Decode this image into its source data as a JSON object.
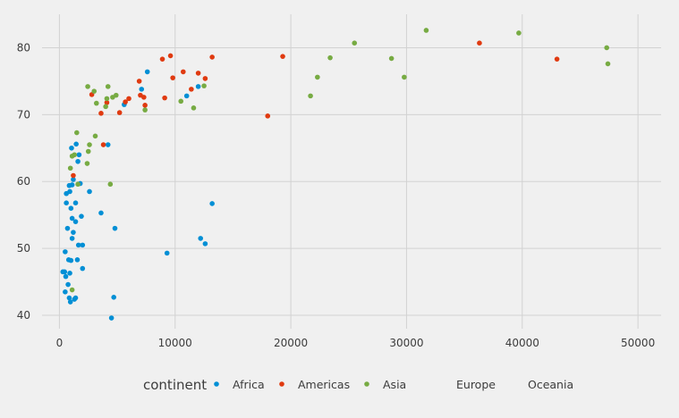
{
  "chart_data": {
    "type": "scatter",
    "title": "",
    "xlabel": "",
    "ylabel": "",
    "xlim": [
      -1500,
      52000
    ],
    "ylim": [
      38,
      85
    ],
    "xticks": [
      0,
      10000,
      20000,
      30000,
      40000,
      50000
    ],
    "yticks": [
      40,
      50,
      60,
      70,
      80
    ],
    "grid": true,
    "background": "#f0f0f0",
    "grid_color": "#d2d2d2",
    "legend": {
      "title": "continent",
      "position": "bottom",
      "entries": [
        {
          "label": "Africa",
          "color": "#008fd5"
        },
        {
          "label": "Americas",
          "color": "#e03a10"
        },
        {
          "label": "Asia",
          "color": "#77ab43"
        },
        {
          "label": "Europe",
          "color": ""
        },
        {
          "label": "Oceania",
          "color": ""
        }
      ]
    },
    "series": [
      {
        "name": "Africa",
        "color": "#008fd5",
        "points": [
          [
            300,
            46.5
          ],
          [
            450,
            46.5
          ],
          [
            500,
            49.5
          ],
          [
            500,
            43.5
          ],
          [
            550,
            45.8
          ],
          [
            600,
            56.8
          ],
          [
            600,
            58.2
          ],
          [
            700,
            53
          ],
          [
            750,
            44.6
          ],
          [
            800,
            48.3
          ],
          [
            850,
            42.6
          ],
          [
            850,
            59.4
          ],
          [
            900,
            46.3
          ],
          [
            900,
            58.5
          ],
          [
            950,
            42
          ],
          [
            1000,
            48.2
          ],
          [
            1000,
            56
          ],
          [
            1050,
            65
          ],
          [
            1100,
            51.5
          ],
          [
            1100,
            54.5
          ],
          [
            1100,
            59.5
          ],
          [
            1200,
            52.4
          ],
          [
            1200,
            60.3
          ],
          [
            1300,
            42.4
          ],
          [
            1400,
            54
          ],
          [
            1400,
            42.6
          ],
          [
            1400,
            56.8
          ],
          [
            1450,
            65.6
          ],
          [
            1550,
            48.3
          ],
          [
            1600,
            63
          ],
          [
            1650,
            50.5
          ],
          [
            1700,
            64
          ],
          [
            1800,
            59.7
          ],
          [
            1900,
            54.8
          ],
          [
            2000,
            50.5
          ],
          [
            2000,
            47
          ],
          [
            2600,
            58.5
          ],
          [
            3600,
            55.3
          ],
          [
            4200,
            65.5
          ],
          [
            4500,
            39.6
          ],
          [
            4700,
            42.7
          ],
          [
            4800,
            53
          ],
          [
            5600,
            71.5
          ],
          [
            7100,
            73.8
          ],
          [
            7600,
            76.4
          ],
          [
            9300,
            49.3
          ],
          [
            11000,
            72.8
          ],
          [
            12000,
            74.2
          ],
          [
            12200,
            51.5
          ],
          [
            12600,
            50.7
          ],
          [
            13200,
            56.7
          ]
        ]
      },
      {
        "name": "Americas",
        "color": "#e03a10",
        "points": [
          [
            1200,
            60.9
          ],
          [
            2800,
            73
          ],
          [
            3600,
            70.2
          ],
          [
            3800,
            65.5
          ],
          [
            4100,
            71.8
          ],
          [
            5200,
            70.3
          ],
          [
            5700,
            71.9
          ],
          [
            6000,
            72.4
          ],
          [
            6900,
            75
          ],
          [
            7000,
            72.9
          ],
          [
            7300,
            72.6
          ],
          [
            7400,
            71.4
          ],
          [
            8900,
            78.3
          ],
          [
            9100,
            72.5
          ],
          [
            9600,
            78.8
          ],
          [
            9800,
            75.5
          ],
          [
            10700,
            76.4
          ],
          [
            11400,
            73.8
          ],
          [
            12000,
            76.2
          ],
          [
            12600,
            75.4
          ],
          [
            13200,
            78.6
          ],
          [
            18000,
            69.8
          ],
          [
            19300,
            78.7
          ],
          [
            36300,
            80.7
          ],
          [
            43000,
            78.3
          ]
        ]
      },
      {
        "name": "Asia",
        "color": "#77ab43",
        "points": [
          [
            1100,
            43.8
          ],
          [
            950,
            62
          ],
          [
            1100,
            63.8
          ],
          [
            1300,
            64
          ],
          [
            1500,
            67.3
          ],
          [
            1600,
            59.6
          ],
          [
            2400,
            62.7
          ],
          [
            2450,
            74.2
          ],
          [
            2500,
            64.5
          ],
          [
            2600,
            65.5
          ],
          [
            3000,
            73.5
          ],
          [
            3100,
            66.8
          ],
          [
            3200,
            71.7
          ],
          [
            4000,
            71.2
          ],
          [
            4100,
            72.4
          ],
          [
            4200,
            74.2
          ],
          [
            4400,
            59.6
          ],
          [
            4600,
            72.6
          ],
          [
            4900,
            72.9
          ],
          [
            7400,
            70.7
          ],
          [
            10500,
            72
          ],
          [
            11600,
            71
          ],
          [
            12500,
            74.3
          ],
          [
            21700,
            72.8
          ],
          [
            22300,
            75.6
          ],
          [
            23400,
            78.5
          ],
          [
            25500,
            80.7
          ],
          [
            28700,
            78.4
          ],
          [
            29800,
            75.6
          ],
          [
            31700,
            82.6
          ],
          [
            39700,
            82.2
          ],
          [
            47300,
            80
          ],
          [
            47400,
            77.6
          ]
        ]
      }
    ]
  }
}
